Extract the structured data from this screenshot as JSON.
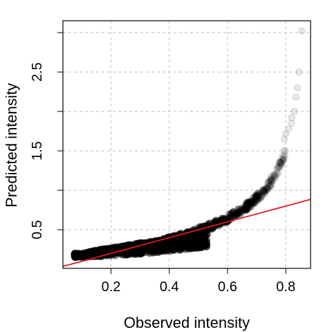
{
  "chart_data": {
    "type": "scatter",
    "title": "",
    "xlabel": "Observed intensity",
    "ylabel": "Predicted intensity",
    "xlim": [
      0.035,
      0.885
    ],
    "ylim": [
      0.01,
      3.15
    ],
    "x_ticks": [
      0.2,
      0.4,
      0.6,
      0.8
    ],
    "x_tick_labels": [
      "0.2",
      "0.4",
      "0.6",
      "0.8"
    ],
    "y_ticks": [
      0.5,
      1.0,
      1.5,
      2.0,
      2.5,
      3.0
    ],
    "y_tick_labels": [
      "0.5",
      "",
      "1.5",
      "",
      "2.5",
      ""
    ],
    "grid": true,
    "point_color": "#000000",
    "reference_line": {
      "intercept": 0.0,
      "slope": 1.0,
      "color": "#e31a1c"
    },
    "upper_band": {
      "x": [
        0.1,
        0.15,
        0.2,
        0.25,
        0.3,
        0.35,
        0.4,
        0.45,
        0.5,
        0.55,
        0.6,
        0.65,
        0.7,
        0.72,
        0.74,
        0.76,
        0.78,
        0.8
      ],
      "y": [
        0.2,
        0.24,
        0.27,
        0.3,
        0.33,
        0.36,
        0.41,
        0.46,
        0.53,
        0.6,
        0.69,
        0.79,
        0.95,
        1.02,
        1.11,
        1.23,
        1.37,
        1.55
      ]
    },
    "lower_band": {
      "x": [
        0.08,
        0.15,
        0.25,
        0.35,
        0.45,
        0.53
      ],
      "y": [
        0.15,
        0.16,
        0.18,
        0.21,
        0.25,
        0.28
      ]
    },
    "outliers": {
      "x": [
        0.795,
        0.8,
        0.81,
        0.82,
        0.82,
        0.83,
        0.835,
        0.84,
        0.845,
        0.855
      ],
      "y": [
        1.65,
        1.72,
        1.78,
        1.85,
        1.92,
        2.0,
        2.18,
        2.3,
        2.5,
        3.02
      ]
    }
  }
}
